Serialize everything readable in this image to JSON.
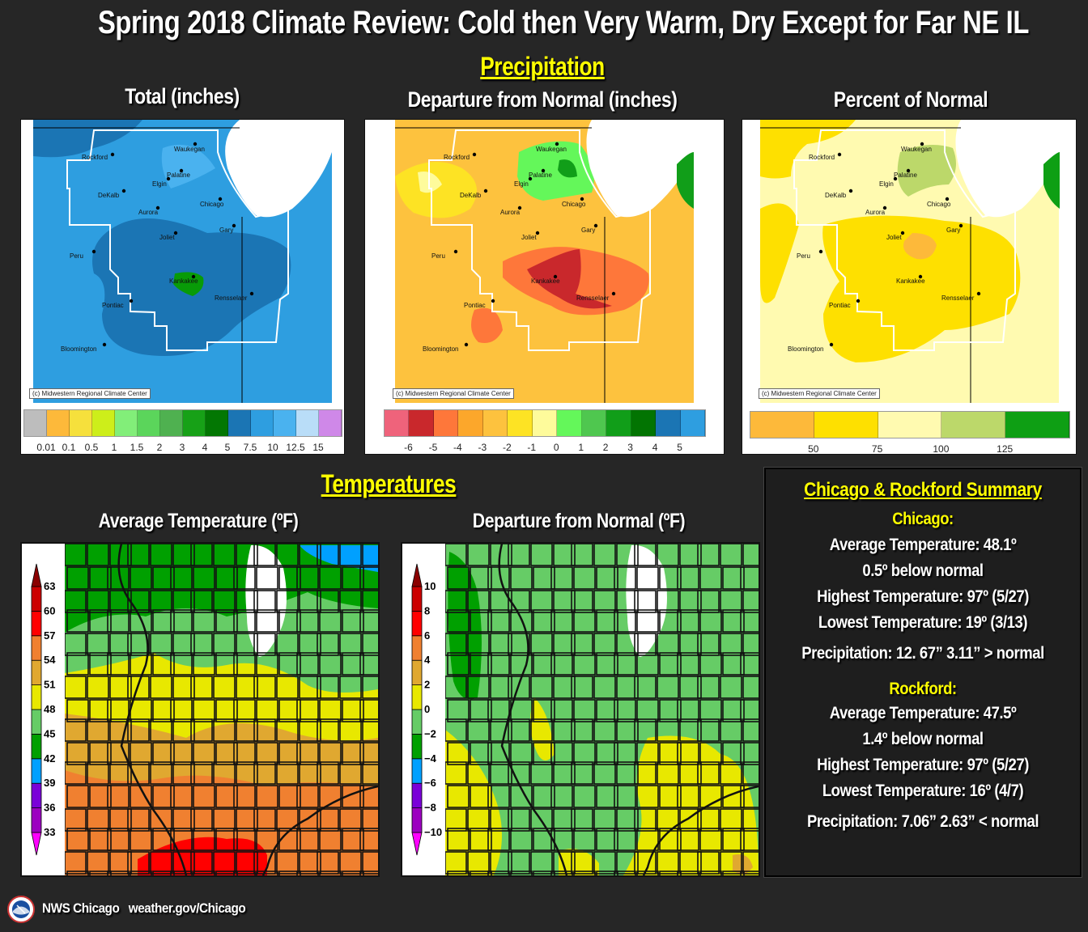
{
  "title": "Spring 2018 Climate Review: Cold then Very Warm, Dry Except for Far NE IL",
  "precipitation": {
    "section_title": "Precipitation",
    "panels": [
      {
        "title": "Total (inches)",
        "credit": "(c) Midwestern Regional Climate Center",
        "legend": {
          "colors": [
            "#bdbdbd",
            "#fdb93a",
            "#f6e03c",
            "#cdee1a",
            "#82ee79",
            "#5bd55b",
            "#4fb150",
            "#17a117",
            "#037703",
            "#1b75b4",
            "#2e9ee0",
            "#4ab2ef",
            "#b9ddf8",
            "#cf88e8"
          ],
          "labels": [
            "0.01",
            "0.1",
            "0.5",
            "1",
            "1.5",
            "2",
            "3",
            "4",
            "5",
            "7.5",
            "10",
            "12.5",
            "15"
          ]
        },
        "cities": [
          "Rockford",
          "Waukegan",
          "Palatine",
          "Elgin",
          "DeKalb",
          "Chicago",
          "Aurora",
          "Gary",
          "Joliet",
          "Peru",
          "Kankakee",
          "Rensselaer",
          "Pontiac",
          "Bloomington"
        ]
      },
      {
        "title": "Departure from Normal (inches)",
        "credit": "(c) Midwestern Regional Climate Center",
        "legend": {
          "colors": [
            "#ef637b",
            "#c9282c",
            "#fe773a",
            "#fca72b",
            "#fdc23e",
            "#fde324",
            "#fefb9b",
            "#64f75a",
            "#4fc74f",
            "#119e19",
            "#027402",
            "#1b75b4",
            "#2e9ee0"
          ],
          "labels": [
            "-6",
            "-5",
            "-4",
            "-3",
            "-2",
            "-1",
            "0",
            "1",
            "2",
            "3",
            "4",
            "5"
          ]
        },
        "cities": [
          "Rockford",
          "Waukegan",
          "Palatine",
          "Elgin",
          "DeKalb",
          "Chicago",
          "Aurora",
          "Gary",
          "Joliet",
          "Peru",
          "Kankakee",
          "Rensselaer",
          "Pontiac",
          "Bloomington"
        ]
      },
      {
        "title": "Percent of Normal",
        "credit": "(c) Midwestern Regional Climate Center",
        "legend": {
          "colors": [
            "#fdb93a",
            "#fee000",
            "#fffab0",
            "#bcd86a",
            "#0e9f14"
          ],
          "labels": [
            "50",
            "75",
            "100",
            "125"
          ]
        },
        "cities": [
          "Rockford",
          "Waukegan",
          "Palatine",
          "Elgin",
          "DeKalb",
          "Chicago",
          "Aurora",
          "Gary",
          "Joliet",
          "Peru",
          "Kankakee",
          "Rensselaer",
          "Pontiac",
          "Bloomington"
        ]
      }
    ]
  },
  "temperatures": {
    "section_title": "Temperatures",
    "panels": [
      {
        "title": "Average Temperature (ºF)",
        "legend": {
          "colors": [
            "#ff00ff",
            "#9c00c0",
            "#7a00d8",
            "#00a0ff",
            "#00a000",
            "#66cc66",
            "#e8e800",
            "#e0a830",
            "#f08030",
            "#ff0000",
            "#cc0000",
            "#8b0000"
          ],
          "labels": [
            "33",
            "36",
            "39",
            "42",
            "45",
            "48",
            "51",
            "54",
            "57",
            "60",
            "63"
          ]
        }
      },
      {
        "title": "Departure from Normal (ºF)",
        "legend": {
          "colors": [
            "#ff00ff",
            "#9c00c0",
            "#7a00d8",
            "#00a0ff",
            "#00a000",
            "#66cc66",
            "#e8e800",
            "#e0a830",
            "#f08030",
            "#ff0000",
            "#cc0000",
            "#8b0000"
          ],
          "labels": [
            "−10",
            "−8",
            "−6",
            "−4",
            "−2",
            "0",
            "2",
            "4",
            "6",
            "8",
            "10"
          ]
        }
      }
    ]
  },
  "summary": {
    "title": "Chicago & Rockford Summary",
    "stations": [
      {
        "name": "Chicago:",
        "avg_temp": "Average Temperature:  48.1º",
        "avg_dep": "0.5º below normal",
        "high": "Highest Temperature:  97º (5/27)",
        "low": "Lowest Temperature:  19º (3/13)",
        "precip": "Precipitation:  12. 67”  3.11” > normal"
      },
      {
        "name": "Rockford:",
        "avg_temp": "Average Temperature:  47.5º",
        "avg_dep": "1.4º below normal",
        "high": "Highest Temperature:  97º (5/27)",
        "low": "Lowest Temperature:  16º (4/7)",
        "precip": "Precipitation: 7.06”  2.63” < normal"
      }
    ]
  },
  "footer": {
    "logo": "nws-logo-icon",
    "office": "NWS Chicago",
    "url": "weather.gov/Chicago"
  }
}
